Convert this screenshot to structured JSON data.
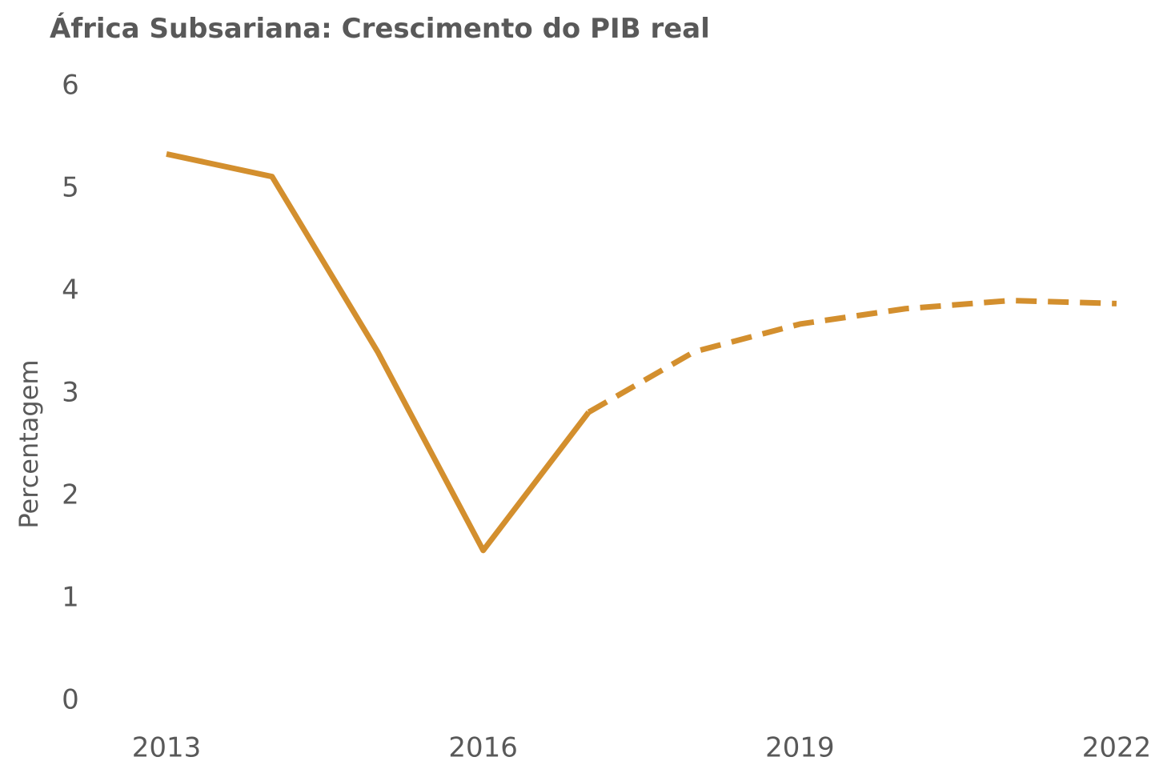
{
  "chart_data": {
    "type": "line",
    "title": "África Subsariana: Crescimento do PIB real",
    "ylabel": "Percentagem",
    "x": [
      2013,
      2014,
      2015,
      2016,
      2017,
      2018,
      2019,
      2020,
      2021,
      2022
    ],
    "series": [
      {
        "color": "#d38f2e",
        "style": "solid",
        "values": [
          5.34,
          5.12,
          3.41,
          1.47,
          2.82,
          null,
          null,
          null,
          null,
          null
        ]
      },
      {
        "color": "#d38f2e",
        "style": "dashed",
        "values": [
          null,
          null,
          null,
          null,
          2.82,
          3.41,
          3.68,
          3.83,
          3.91,
          3.88
        ]
      }
    ],
    "xlim": [
      2013,
      2022
    ],
    "xticks": [
      2013,
      2016,
      2019,
      2022
    ],
    "ylim": [
      0,
      6
    ],
    "yticks": [
      0,
      1,
      2,
      3,
      4,
      5,
      6
    ],
    "grid": false
  }
}
